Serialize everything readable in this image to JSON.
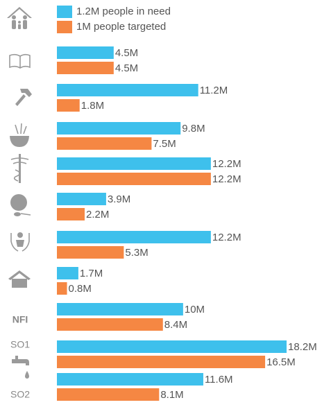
{
  "chart_data": {
    "type": "bar",
    "orientation": "horizontal",
    "categories": [
      null,
      null,
      null,
      null,
      null,
      null,
      null,
      "NFI",
      "SO1",
      "SO2"
    ],
    "series": [
      {
        "name": "1.2M people in need",
        "color": "#3ec0ec",
        "values": [
          4.5,
          11.2,
          9.8,
          12.2,
          3.9,
          12.2,
          1.7,
          10,
          18.2,
          11.6
        ],
        "value_labels": [
          "4.5M",
          "11.2M",
          "9.8M",
          "12.2M",
          "3.9M",
          "12.2M",
          "1.7M",
          "10M",
          "18.2M",
          "11.6M"
        ]
      },
      {
        "name": "1M people targeted",
        "color": "#f58743",
        "values": [
          4.5,
          1.8,
          7.5,
          12.2,
          2.2,
          5.3,
          0.8,
          8.4,
          16.5,
          8.1
        ],
        "value_labels": [
          "4.5M",
          "1.8M",
          "7.5M",
          "12.2M",
          "2.2M",
          "5.3M",
          "0.8M",
          "8.4M",
          "16.5M",
          "8.1M"
        ]
      }
    ],
    "xlim": [
      0,
      18.2
    ]
  }
}
